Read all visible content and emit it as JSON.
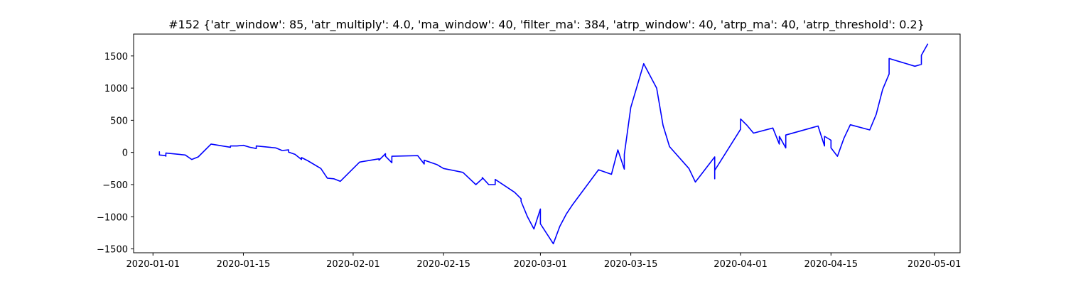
{
  "chart_data": {
    "type": "line",
    "title": "#152 {'atr_window': 85, 'atr_multiply': 4.0, 'ma_window': 40, 'filter_ma': 384, 'atrp_window': 40, 'atrp_ma': 40, 'atrp_threshold': 0.2}",
    "xlabel": "",
    "ylabel": "",
    "x_type": "date",
    "xlim": [
      "2019-12-29",
      "2020-05-05"
    ],
    "ylim": [
      -1560,
      1840
    ],
    "xticks": [
      "2020-01-01",
      "2020-01-15",
      "2020-02-01",
      "2020-02-15",
      "2020-03-01",
      "2020-03-15",
      "2020-04-01",
      "2020-04-15",
      "2020-05-01"
    ],
    "yticks": [
      -1500,
      -1000,
      -500,
      0,
      500,
      1000,
      1500
    ],
    "grid": false,
    "legend": "none",
    "series": [
      {
        "color": "#0000ff",
        "points": [
          [
            "2020-01-02",
            0
          ],
          [
            "2020-01-02",
            10
          ],
          [
            "2020-01-02",
            -20
          ],
          [
            "2020-01-02",
            5
          ],
          [
            "2020-01-02",
            -40
          ],
          [
            "2020-01-03",
            -50
          ],
          [
            "2020-01-03",
            -20
          ],
          [
            "2020-01-03",
            -60
          ],
          [
            "2020-01-03",
            -10
          ],
          [
            "2020-01-06",
            -40
          ],
          [
            "2020-01-07",
            -110
          ],
          [
            "2020-01-08",
            -70
          ],
          [
            "2020-01-10",
            130
          ],
          [
            "2020-01-13",
            80
          ],
          [
            "2020-01-13",
            100
          ],
          [
            "2020-01-14",
            100
          ],
          [
            "2020-01-15",
            110
          ],
          [
            "2020-01-16",
            80
          ],
          [
            "2020-01-17",
            60
          ],
          [
            "2020-01-17",
            100
          ],
          [
            "2020-01-20",
            70
          ],
          [
            "2020-01-21",
            30
          ],
          [
            "2020-01-22",
            40
          ],
          [
            "2020-01-22",
            5
          ],
          [
            "2020-01-23",
            -30
          ],
          [
            "2020-01-24",
            -110
          ],
          [
            "2020-01-24",
            -80
          ],
          [
            "2020-01-25",
            -130
          ],
          [
            "2020-01-27",
            -250
          ],
          [
            "2020-01-28",
            -400
          ],
          [
            "2020-01-29",
            -410
          ],
          [
            "2020-01-30",
            -450
          ],
          [
            "2020-02-02",
            -150
          ],
          [
            "2020-02-05",
            -100
          ],
          [
            "2020-02-05",
            -120
          ],
          [
            "2020-02-06",
            -20
          ],
          [
            "2020-02-06",
            -60
          ],
          [
            "2020-02-07",
            -160
          ],
          [
            "2020-02-07",
            -60
          ],
          [
            "2020-02-11",
            -50
          ],
          [
            "2020-02-12",
            -180
          ],
          [
            "2020-02-12",
            -120
          ],
          [
            "2020-02-14",
            -190
          ],
          [
            "2020-02-15",
            -250
          ],
          [
            "2020-02-18",
            -310
          ],
          [
            "2020-02-20",
            -500
          ],
          [
            "2020-02-21",
            -410
          ],
          [
            "2020-02-21",
            -390
          ],
          [
            "2020-02-22",
            -500
          ],
          [
            "2020-02-23",
            -500
          ],
          [
            "2020-02-23",
            -420
          ],
          [
            "2020-02-26",
            -620
          ],
          [
            "2020-02-27",
            -720
          ],
          [
            "2020-02-27",
            -760
          ],
          [
            "2020-02-28",
            -1000
          ],
          [
            "2020-02-29",
            -1190
          ],
          [
            "2020-03-01",
            -880
          ],
          [
            "2020-03-01",
            -1110
          ],
          [
            "2020-03-03",
            -1420
          ],
          [
            "2020-03-04",
            -1150
          ],
          [
            "2020-03-05",
            -960
          ],
          [
            "2020-03-06",
            -810
          ],
          [
            "2020-03-10",
            -270
          ],
          [
            "2020-03-12",
            -340
          ],
          [
            "2020-03-13",
            40
          ],
          [
            "2020-03-14",
            -260
          ],
          [
            "2020-03-14",
            -30
          ],
          [
            "2020-03-15",
            700
          ],
          [
            "2020-03-17",
            1380
          ],
          [
            "2020-03-19",
            1000
          ],
          [
            "2020-03-20",
            420
          ],
          [
            "2020-03-21",
            90
          ],
          [
            "2020-03-24",
            -250
          ],
          [
            "2020-03-25",
            -460
          ],
          [
            "2020-03-28",
            -70
          ],
          [
            "2020-03-28",
            -410
          ],
          [
            "2020-03-28",
            -280
          ],
          [
            "2020-04-01",
            360
          ],
          [
            "2020-04-01",
            520
          ],
          [
            "2020-04-02",
            420
          ],
          [
            "2020-04-03",
            300
          ],
          [
            "2020-04-06",
            380
          ],
          [
            "2020-04-07",
            130
          ],
          [
            "2020-04-07",
            250
          ],
          [
            "2020-04-08",
            70
          ],
          [
            "2020-04-08",
            270
          ],
          [
            "2020-04-13",
            410
          ],
          [
            "2020-04-14",
            100
          ],
          [
            "2020-04-14",
            250
          ],
          [
            "2020-04-15",
            190
          ],
          [
            "2020-04-15",
            70
          ],
          [
            "2020-04-16",
            -60
          ],
          [
            "2020-04-17",
            220
          ],
          [
            "2020-04-18",
            430
          ],
          [
            "2020-04-21",
            350
          ],
          [
            "2020-04-22",
            590
          ],
          [
            "2020-04-23",
            980
          ],
          [
            "2020-04-24",
            1220
          ],
          [
            "2020-04-24",
            1460
          ],
          [
            "2020-04-28",
            1340
          ],
          [
            "2020-04-29",
            1370
          ],
          [
            "2020-04-29",
            1510
          ],
          [
            "2020-04-30",
            1690
          ]
        ]
      }
    ]
  }
}
